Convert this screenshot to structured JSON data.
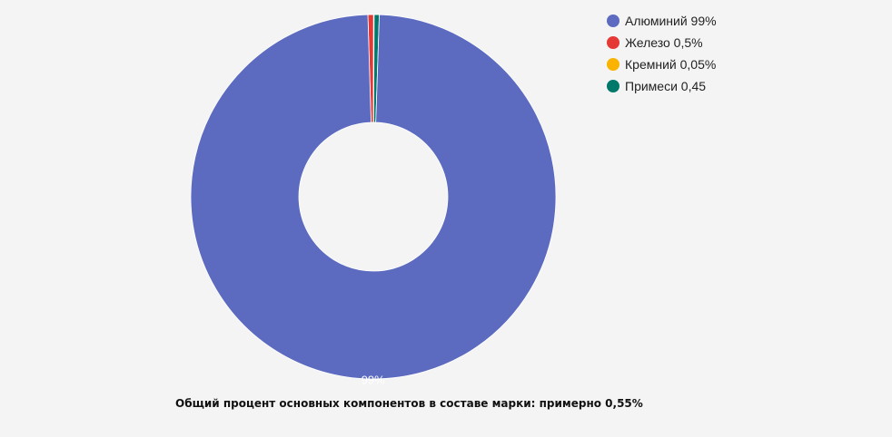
{
  "chart_data": {
    "type": "pie",
    "donut": true,
    "title": "",
    "legend_position": "top-right",
    "slices": [
      {
        "label": "Алюминий 99%",
        "value": 99.0,
        "color": "#5c6bc0",
        "data_label": "99%"
      },
      {
        "label": "Железо 0,5%",
        "value": 0.5,
        "color": "#e53935",
        "data_label": ""
      },
      {
        "label": "Кремний 0,05%",
        "value": 0.05,
        "color": "#f9b300",
        "data_label": ""
      },
      {
        "label": "Примеси 0,45",
        "value": 0.45,
        "color": "#00796b",
        "data_label": ""
      }
    ]
  },
  "caption": "Общий процент основных компонентов в составе марки: примерно 0,55%"
}
